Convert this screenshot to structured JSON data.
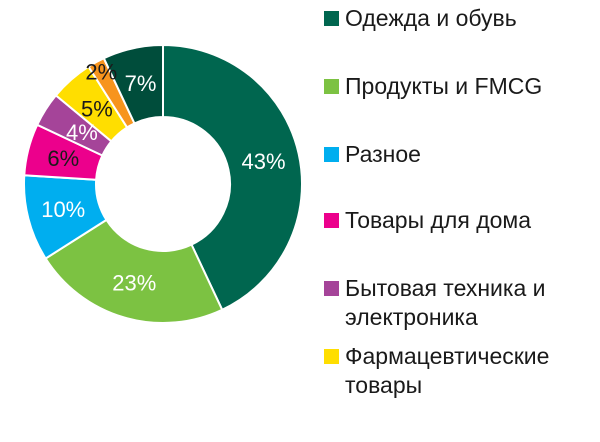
{
  "chart_data": {
    "type": "pie",
    "categories": [
      "Одежда и обувь",
      "Продукты и FMCG",
      "Разное",
      "Товары для дома",
      "Бытовая техника и электроника",
      "Фармацевтические товары",
      "",
      ""
    ],
    "values": [
      43,
      23,
      10,
      6,
      4,
      5,
      2,
      7
    ],
    "labels": [
      "43%",
      "23%",
      "10%",
      "6%",
      "4%",
      "5%",
      "2%",
      "7%"
    ],
    "colors": [
      "#00664f",
      "#7cc242",
      "#00aeef",
      "#ec008c",
      "#a54499",
      "#ffde00",
      "#f7941d",
      "#004d3b"
    ],
    "legend": {
      "placement": "right",
      "items": [
        {
          "label": "Одежда и обувь",
          "color": "#00664f"
        },
        {
          "label": "Продукты и FMCG",
          "color": "#7cc242"
        },
        {
          "label": "Разное",
          "color": "#00aeef"
        },
        {
          "label": "Товары для дома",
          "color": "#ec008c"
        },
        {
          "label": "Бытовая техника и электроника",
          "color": "#a54499"
        },
        {
          "label": "Фармацевтические товары",
          "color": "#ffde00"
        }
      ]
    }
  }
}
